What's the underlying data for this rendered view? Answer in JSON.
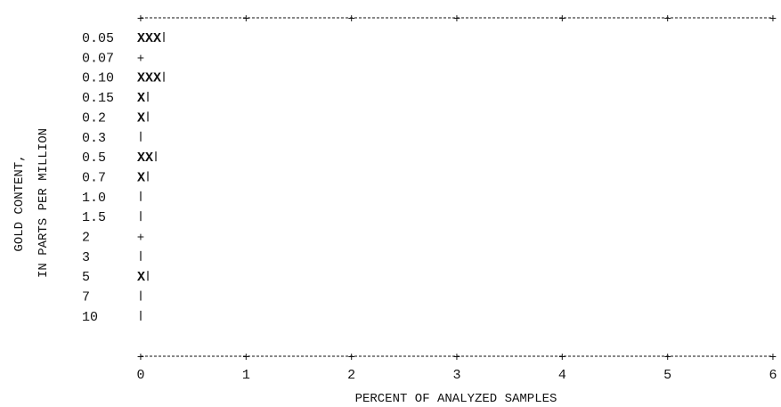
{
  "chart_data": {
    "type": "bar",
    "orientation": "horizontal",
    "bar_glyph": "X",
    "xlabel": "PERCENT OF ANALYZED SAMPLES",
    "ylabel_lines": [
      "GOLD CONTENT,",
      "IN PARTS PER MILLION"
    ],
    "xlim": [
      0,
      6
    ],
    "xticks": [
      "0",
      "1",
      "2",
      "3",
      "4",
      "5",
      "6"
    ],
    "categories": [
      "0.05",
      "0.07",
      "0.10",
      "0.15",
      "0.2",
      "0.3",
      "0.5",
      "0.7",
      "1.0",
      "1.5",
      "2",
      "3",
      "5",
      "7",
      "10"
    ],
    "values": [
      0.3,
      0,
      0.3,
      0.1,
      0.1,
      0,
      0.2,
      0.1,
      0,
      0,
      0,
      0,
      0.1,
      0,
      0
    ],
    "y_axis_markers": [
      "|",
      "+",
      "|",
      "|",
      "|",
      "|",
      "|",
      "|",
      "|",
      "|",
      "+",
      "|",
      "|",
      "|",
      "|"
    ],
    "bar_labels": [
      "XXX",
      "",
      "XXX",
      "X",
      "X",
      "",
      "XX",
      "X",
      "",
      "",
      "",
      "",
      "X",
      "",
      ""
    ],
    "grid": false,
    "colors": {
      "ink": "#111111",
      "background": "#ffffff"
    }
  }
}
